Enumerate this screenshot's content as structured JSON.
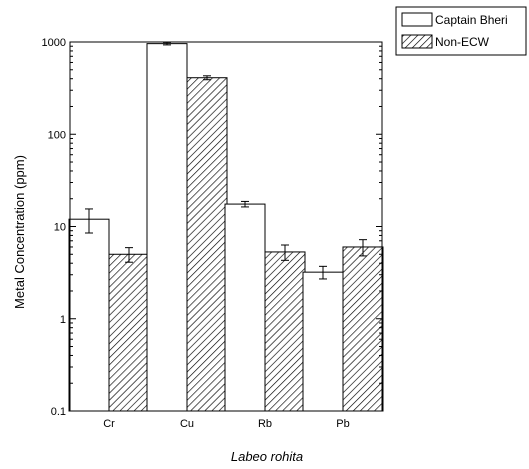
{
  "chart_data": {
    "type": "bar",
    "title": "",
    "xlabel": "Labeo rohita",
    "ylabel": "Metal Concentration (ppm)",
    "yscale": "log",
    "ylim": [
      0.1,
      1000
    ],
    "y_ticks": [
      0.1,
      1,
      10,
      100,
      1000
    ],
    "y_tick_labels": [
      "0.1",
      "1",
      "10",
      "100",
      "1000"
    ],
    "categories": [
      "Cr",
      "Cu",
      "Rb",
      "Pb"
    ],
    "series": [
      {
        "name": "Captain Bheri",
        "fill": "hollow",
        "values": [
          12,
          960,
          17.5,
          3.2
        ],
        "errors": [
          3.5,
          30,
          1.2,
          0.5
        ]
      },
      {
        "name": "Non-ECW",
        "fill": "hatched",
        "values": [
          5.0,
          410,
          5.3,
          6.0
        ],
        "errors": [
          0.9,
          20,
          1.0,
          1.2
        ]
      }
    ],
    "legend_position": "top-right",
    "grid": false,
    "colors": {
      "bar_stroke": "#000000",
      "hollow_fill": "#ffffff",
      "hatch": "#000000"
    }
  }
}
